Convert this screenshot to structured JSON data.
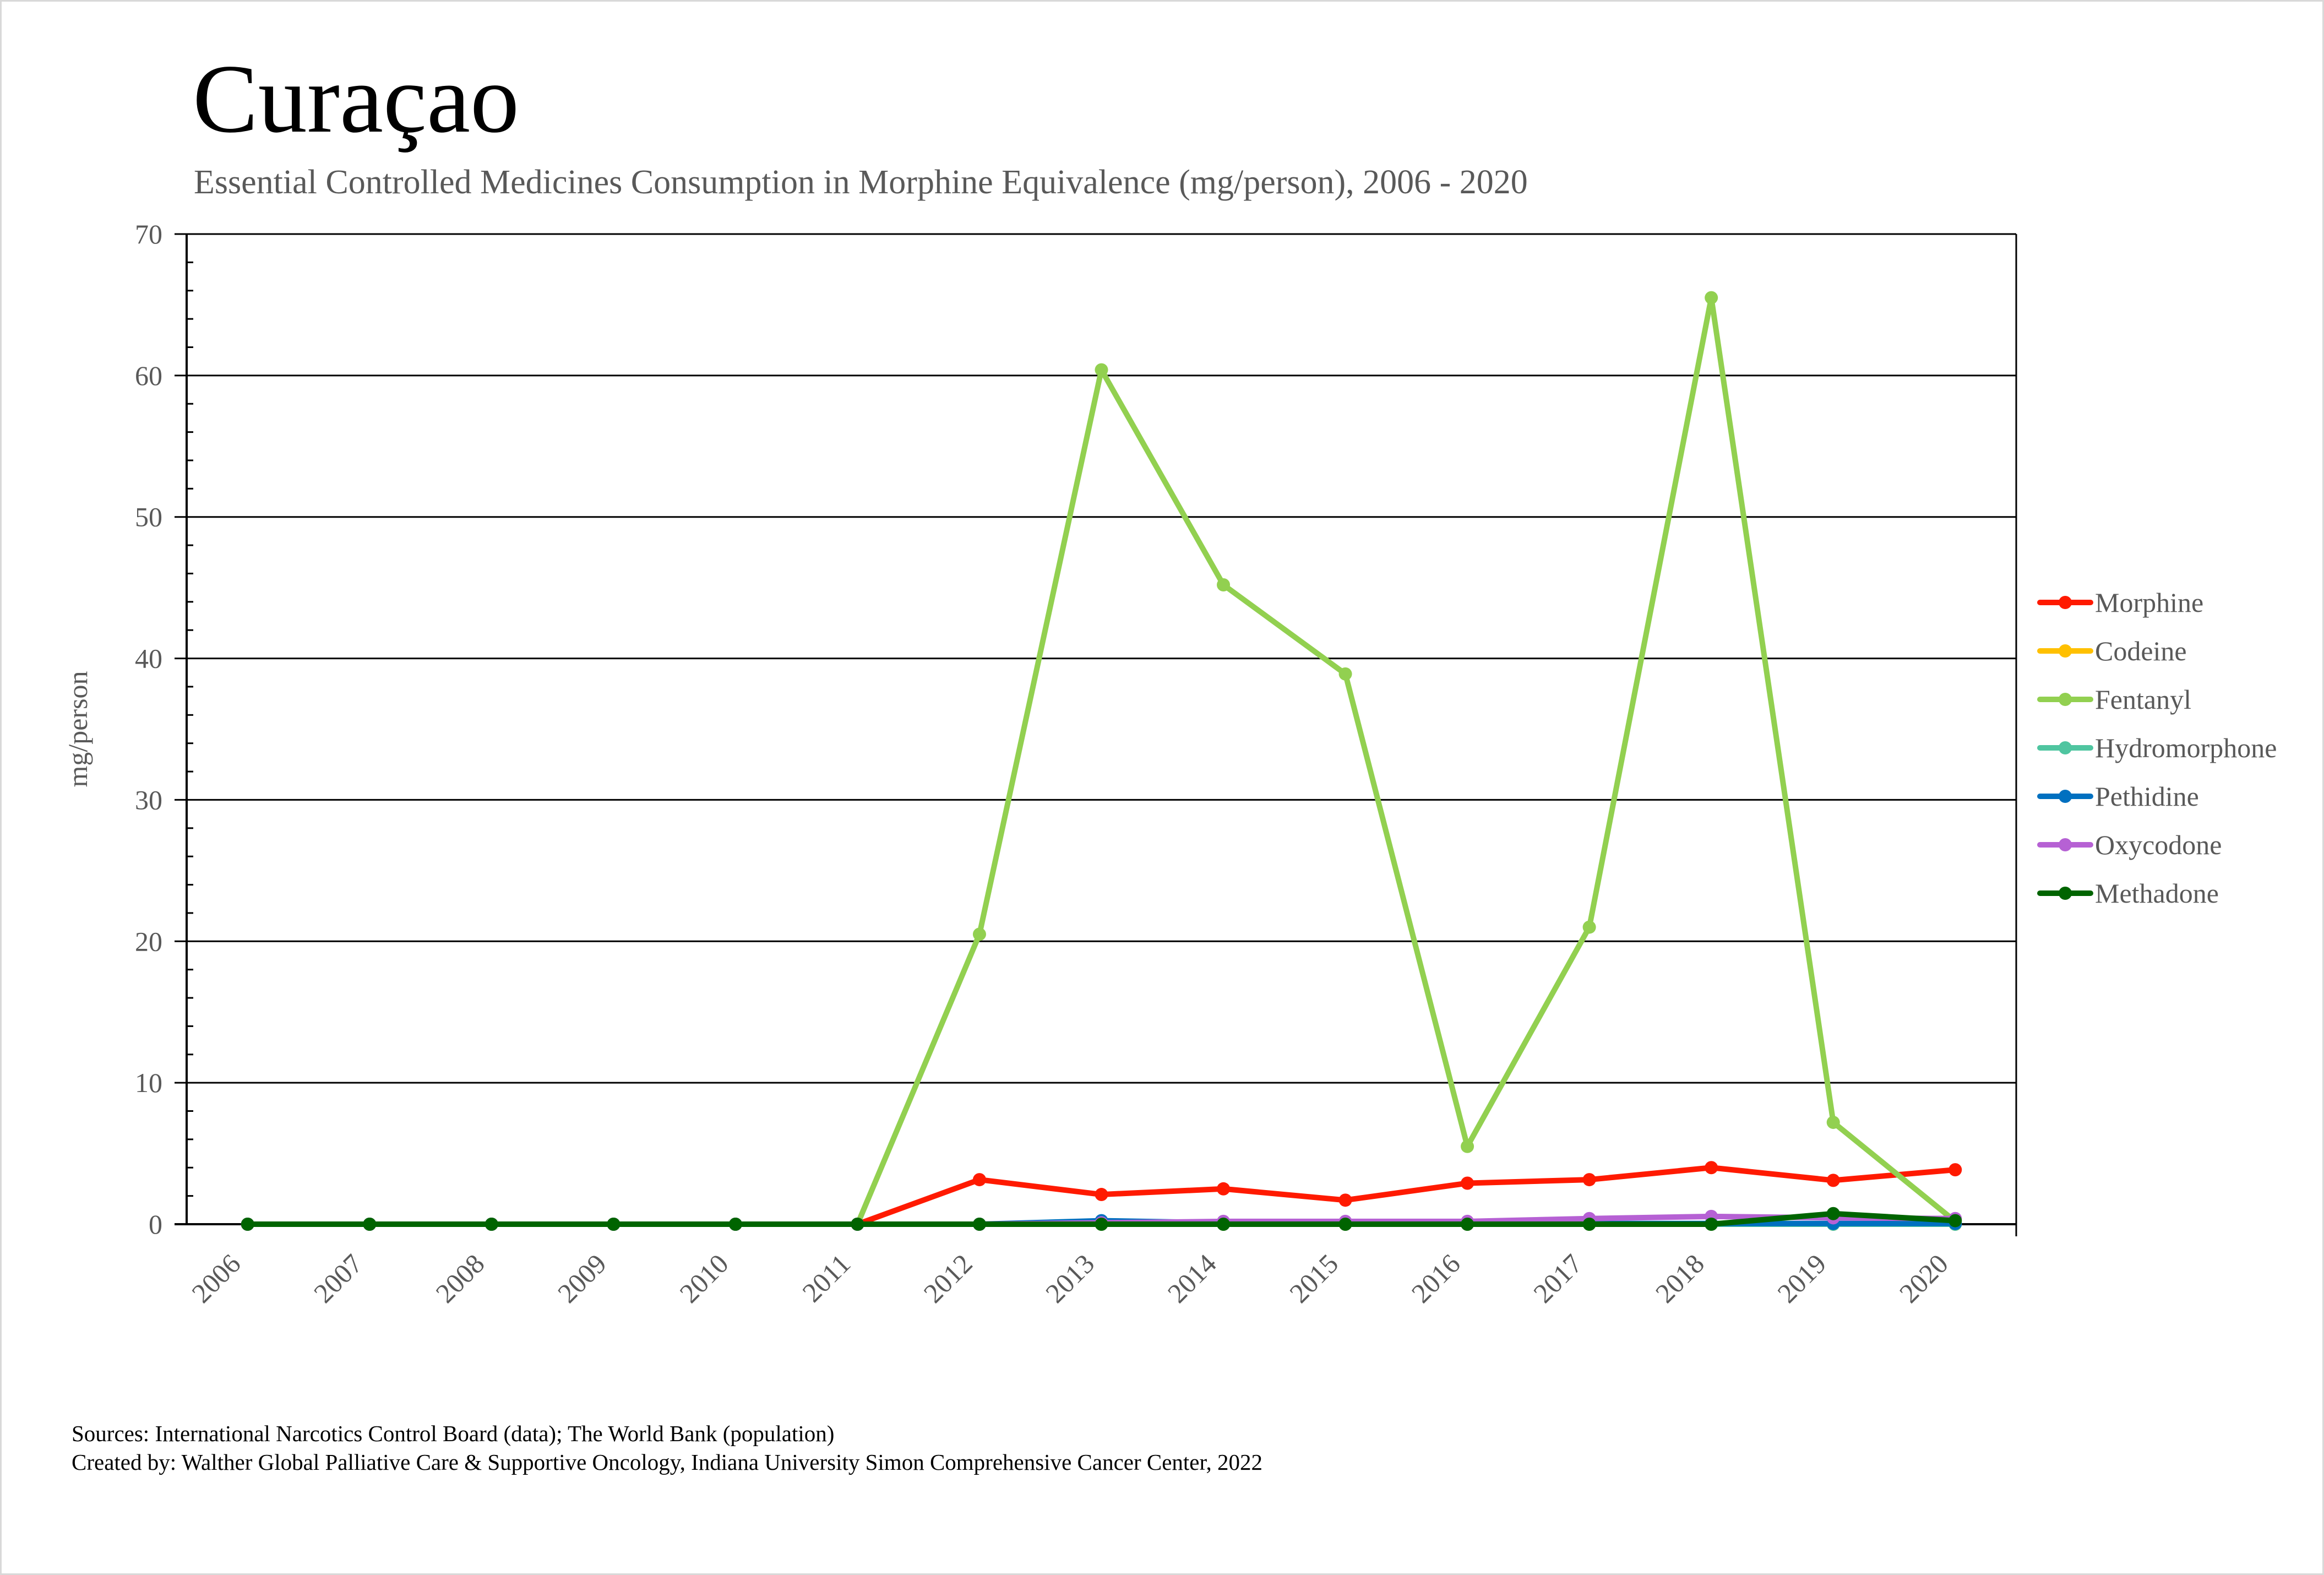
{
  "header": {
    "title": "Curaçao",
    "subtitle": "Essential Controlled Medicines Consumption in Morphine Equivalence (mg/person), 2006 - 2020"
  },
  "footer": {
    "sources": "Sources: International Narcotics Control Board (data); The World Bank (population)",
    "created_by": "Created by: Walther Global Palliative Care & Supportive Oncology, Indiana University Simon Comprehensive Cancer Center, 2022"
  },
  "chart_data": {
    "type": "line",
    "title": "Curaçao",
    "subtitle": "Essential Controlled Medicines Consumption in Morphine Equivalence (mg/person), 2006 - 2020",
    "xlabel": "",
    "ylabel": "mg/person",
    "ylim": [
      0,
      70
    ],
    "yticks": [
      0,
      10,
      20,
      30,
      40,
      50,
      60,
      70
    ],
    "y_minor_step": 2,
    "grid": true,
    "legend_position": "right",
    "categories": [
      "2006",
      "2007",
      "2008",
      "2009",
      "2010",
      "2011",
      "2012",
      "2013",
      "2014",
      "2015",
      "2016",
      "2017",
      "2018",
      "2019",
      "2020"
    ],
    "series": [
      {
        "name": "Morphine",
        "color": "#ff1a00",
        "values": [
          0,
          0,
          0,
          0,
          0,
          0,
          3.15,
          2.1,
          2.5,
          1.7,
          2.9,
          3.15,
          4.0,
          3.1,
          3.85
        ]
      },
      {
        "name": "Codeine",
        "color": "#ffc000",
        "values": [
          0,
          0,
          0,
          0,
          0,
          0,
          0,
          0,
          0,
          0,
          0,
          0,
          0,
          0,
          0
        ]
      },
      {
        "name": "Fentanyl",
        "color": "#92d050",
        "values": [
          0,
          0,
          0,
          0,
          0,
          0,
          20.5,
          60.4,
          45.2,
          38.9,
          5.5,
          21.0,
          65.5,
          7.2,
          0.2
        ]
      },
      {
        "name": "Hydromorphone",
        "color": "#4fc5a0",
        "values": [
          0,
          0,
          0,
          0,
          0,
          0,
          0,
          0,
          0,
          0,
          0,
          0,
          0,
          0,
          0
        ]
      },
      {
        "name": "Pethidine",
        "color": "#0070c0",
        "values": [
          0,
          0,
          0,
          0,
          0,
          0,
          0,
          0.25,
          0.1,
          0.1,
          0.1,
          0.05,
          0.05,
          0.05,
          0.05
        ]
      },
      {
        "name": "Oxycodone",
        "color": "#b661d4",
        "values": [
          0,
          0,
          0,
          0,
          0,
          0,
          0,
          0.1,
          0.2,
          0.2,
          0.2,
          0.4,
          0.55,
          0.45,
          0.4
        ]
      },
      {
        "name": "Methadone",
        "color": "#006400",
        "values": [
          0,
          0,
          0,
          0,
          0,
          0,
          0,
          0,
          0,
          0,
          0,
          0,
          0,
          0.75,
          0.25
        ]
      }
    ]
  }
}
